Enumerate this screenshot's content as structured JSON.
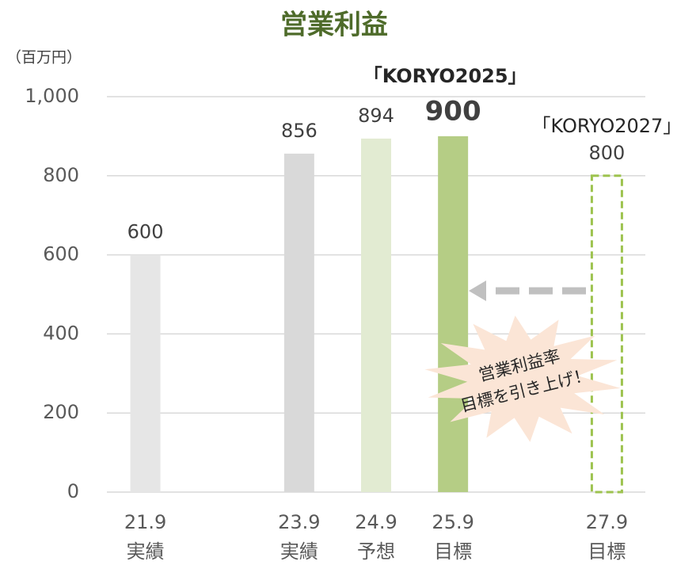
{
  "chart_data": {
    "type": "bar",
    "title": "営業利益",
    "y_unit_label": "（百万円）",
    "categories": [
      "21.9",
      null,
      "23.9",
      "24.9",
      "25.9",
      null,
      "27.9"
    ],
    "category_notes": [
      "実績",
      null,
      "実績",
      "予想",
      "目標",
      null,
      "目標"
    ],
    "values": [
      600,
      null,
      856,
      894,
      900,
      null,
      800
    ],
    "colors": [
      "#e6e6e6",
      null,
      "#d9d9d9",
      "#e2ebd2",
      "#b5cd85",
      null,
      "#9dc34f"
    ],
    "bar_styles": [
      "solid",
      null,
      "solid",
      "solid",
      "solid",
      null,
      "dashed"
    ],
    "ylim": [
      0,
      1000
    ],
    "yticks": [
      0,
      200,
      400,
      600,
      800,
      {
        "value": 1000,
        "label": "1,000"
      }
    ],
    "grid": true,
    "annotations": [
      "「KORYO2025」",
      "「KORYO2027」"
    ],
    "callout": [
      "営業利益率",
      "目標を引き上げ！"
    ]
  }
}
